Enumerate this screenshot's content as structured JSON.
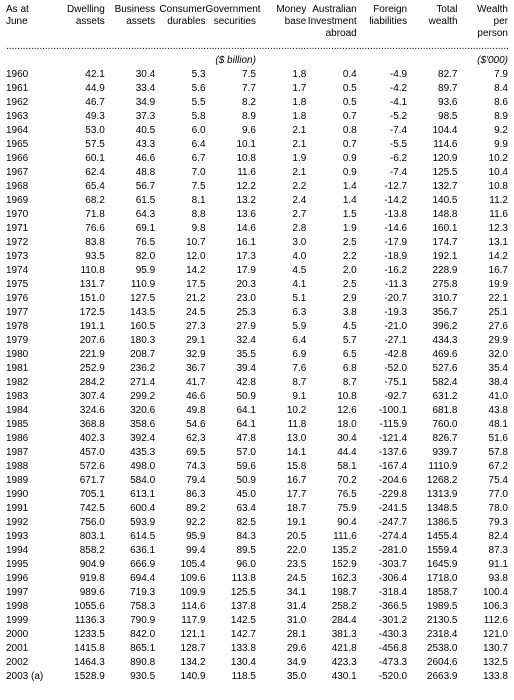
{
  "columns": [
    "As at June",
    "Dwelling assets",
    "Business assets",
    "Consumer durables",
    "Government securities",
    "Money base",
    "Australian Investment abroad",
    "Foreign liabilities",
    "Total wealth",
    "Wealth per person"
  ],
  "unit_main": "($ billion)",
  "unit_last": "($'000)",
  "rows": [
    [
      "1960",
      "42.1",
      "30.4",
      "5.3",
      "7.5",
      "1.8",
      "0.4",
      "-4.9",
      "82.7",
      "7.9"
    ],
    [
      "1961",
      "44.9",
      "33.4",
      "5.6",
      "7.7",
      "1.7",
      "0.5",
      "-4.2",
      "89.7",
      "8.4"
    ],
    [
      "1962",
      "46.7",
      "34.9",
      "5.5",
      "8.2",
      "1.8",
      "0.5",
      "-4.1",
      "93.6",
      "8.6"
    ],
    [
      "1963",
      "49.3",
      "37.3",
      "5.8",
      "8.9",
      "1.8",
      "0.7",
      "-5.2",
      "98.5",
      "8.9"
    ],
    [
      "1964",
      "53.0",
      "40.5",
      "6.0",
      "9.6",
      "2.1",
      "0.8",
      "-7.4",
      "104.4",
      "9.2"
    ],
    [
      "1965",
      "57.5",
      "43.3",
      "6.4",
      "10.1",
      "2.1",
      "0.7",
      "-5.5",
      "114.6",
      "9.9"
    ],
    [
      "1966",
      "60.1",
      "46.6",
      "6.7",
      "10.8",
      "1.9",
      "0.9",
      "-6.2",
      "120.9",
      "10.2"
    ],
    [
      "1967",
      "62.4",
      "48.8",
      "7.0",
      "11.6",
      "2.1",
      "0.9",
      "-7.4",
      "125.5",
      "10.4"
    ],
    [
      "1968",
      "65.4",
      "56.7",
      "7.5",
      "12.2",
      "2.2",
      "1.4",
      "-12.7",
      "132.7",
      "10.8"
    ],
    [
      "1969",
      "68.2",
      "61.5",
      "8.1",
      "13.2",
      "2.4",
      "1.4",
      "-14.2",
      "140.5",
      "11.2"
    ],
    [
      "1970",
      "71.8",
      "64.3",
      "8.8",
      "13.6",
      "2.7",
      "1.5",
      "-13.8",
      "148.8",
      "11.6"
    ],
    [
      "1971",
      "76.6",
      "69.1",
      "9.8",
      "14.6",
      "2.8",
      "1.9",
      "-14.6",
      "160.1",
      "12.3"
    ],
    [
      "1972",
      "83.8",
      "76.5",
      "10.7",
      "16.1",
      "3.0",
      "2.5",
      "-17.9",
      "174.7",
      "13.1"
    ],
    [
      "1973",
      "93.5",
      "82.0",
      "12.0",
      "17.3",
      "4.0",
      "2.2",
      "-18.9",
      "192.1",
      "14.2"
    ],
    [
      "1974",
      "110.8",
      "95.9",
      "14.2",
      "17.9",
      "4.5",
      "2.0",
      "-16.2",
      "228.9",
      "16.7"
    ],
    [
      "1975",
      "131.7",
      "110.9",
      "17.5",
      "20.3",
      "4.1",
      "2.5",
      "-11.3",
      "275.8",
      "19.9"
    ],
    [
      "1976",
      "151.0",
      "127.5",
      "21.2",
      "23.0",
      "5.1",
      "2.9",
      "-20.7",
      "310.7",
      "22.1"
    ],
    [
      "1977",
      "172.5",
      "143.5",
      "24.5",
      "25.3",
      "6.3",
      "3.8",
      "-19.3",
      "356.7",
      "25.1"
    ],
    [
      "1978",
      "191.1",
      "160.5",
      "27.3",
      "27.9",
      "5.9",
      "4.5",
      "-21.0",
      "396.2",
      "27.6"
    ],
    [
      "1979",
      "207.6",
      "180.3",
      "29.1",
      "32.4",
      "6.4",
      "5.7",
      "-27.1",
      "434.3",
      "29.9"
    ],
    [
      "1980",
      "221.9",
      "208.7",
      "32.9",
      "35.5",
      "6.9",
      "6.5",
      "-42.8",
      "469.6",
      "32.0"
    ],
    [
      "1981",
      "252.9",
      "236.2",
      "36.7",
      "39.4",
      "7.6",
      "6.8",
      "-52.0",
      "527.6",
      "35.4"
    ],
    [
      "1982",
      "284.2",
      "271.4",
      "41.7",
      "42.8",
      "8.7",
      "8.7",
      "-75.1",
      "582.4",
      "38.4"
    ],
    [
      "1983",
      "307.4",
      "299.2",
      "46.6",
      "50.9",
      "9.1",
      "10.8",
      "-92.7",
      "631.2",
      "41.0"
    ],
    [
      "1984",
      "324.6",
      "320.6",
      "49.8",
      "64.1",
      "10.2",
      "12.6",
      "-100.1",
      "681.8",
      "43.8"
    ],
    [
      "1985",
      "368.8",
      "358.6",
      "54.6",
      "64.1",
      "11.8",
      "18.0",
      "-115.9",
      "760.0",
      "48.1"
    ],
    [
      "1986",
      "402.3",
      "392.4",
      "62.3",
      "47.8",
      "13.0",
      "30.4",
      "-121.4",
      "826.7",
      "51.6"
    ],
    [
      "1987",
      "457.0",
      "435.3",
      "69.5",
      "57.0",
      "14.1",
      "44.4",
      "-137.6",
      "939.7",
      "57.8"
    ],
    [
      "1988",
      "572.6",
      "498.0",
      "74.3",
      "59.6",
      "15.8",
      "58.1",
      "-167.4",
      "1110.9",
      "67.2"
    ],
    [
      "1989",
      "671.7",
      "584.0",
      "79.4",
      "50.9",
      "16.7",
      "70.2",
      "-204.6",
      "1268.2",
      "75.4"
    ],
    [
      "1990",
      "705.1",
      "613.1",
      "86.3",
      "45.0",
      "17.7",
      "76.5",
      "-229.8",
      "1313.9",
      "77.0"
    ],
    [
      "1991",
      "742.5",
      "600.4",
      "89.2",
      "63.4",
      "18.7",
      "75.9",
      "-241.5",
      "1348.5",
      "78.0"
    ],
    [
      "1992",
      "756.0",
      "593.9",
      "92.2",
      "82.5",
      "19.1",
      "90.4",
      "-247.7",
      "1386.5",
      "79.3"
    ],
    [
      "1993",
      "803.1",
      "614.5",
      "95.9",
      "84.3",
      "20.5",
      "111.6",
      "-274.4",
      "1455.4",
      "82.4"
    ],
    [
      "1994",
      "858.2",
      "636.1",
      "99.4",
      "89.5",
      "22.0",
      "135.2",
      "-281.0",
      "1559.4",
      "87.3"
    ],
    [
      "1995",
      "904.9",
      "666.9",
      "105.4",
      "96.0",
      "23.5",
      "152.9",
      "-303.7",
      "1645.9",
      "91.1"
    ],
    [
      "1996",
      "919.8",
      "694.4",
      "109.6",
      "113.8",
      "24.5",
      "162.3",
      "-306.4",
      "1718.0",
      "93.8"
    ],
    [
      "1997",
      "989.6",
      "719.3",
      "109.9",
      "125.5",
      "34.1",
      "198.7",
      "-318.4",
      "1858.7",
      "100.4"
    ],
    [
      "1998",
      "1055.6",
      "758.3",
      "114.6",
      "137.8",
      "31.4",
      "258.2",
      "-366.5",
      "1989.5",
      "106.3"
    ],
    [
      "1999",
      "1136.3",
      "790.9",
      "117.9",
      "142.5",
      "31.0",
      "284.4",
      "-301.2",
      "2130.5",
      "112.6"
    ],
    [
      "2000",
      "1233.5",
      "842.0",
      "121.1",
      "142.7",
      "28.1",
      "381.3",
      "-430.3",
      "2318.4",
      "121.0"
    ],
    [
      "2001",
      "1415.8",
      "865.1",
      "128.7",
      "133.8",
      "29.6",
      "421.8",
      "-456.8",
      "2538.0",
      "130.7"
    ],
    [
      "2002",
      "1464.3",
      "890.8",
      "134.2",
      "130.4",
      "34.9",
      "423.3",
      "-473.3",
      "2604.6",
      "132.5"
    ],
    [
      "2003 (a)",
      "1528.9",
      "930.5",
      "140.9",
      "118.5",
      "35.0",
      "430.1",
      "-520.0",
      "2663.9",
      "133.8"
    ]
  ]
}
